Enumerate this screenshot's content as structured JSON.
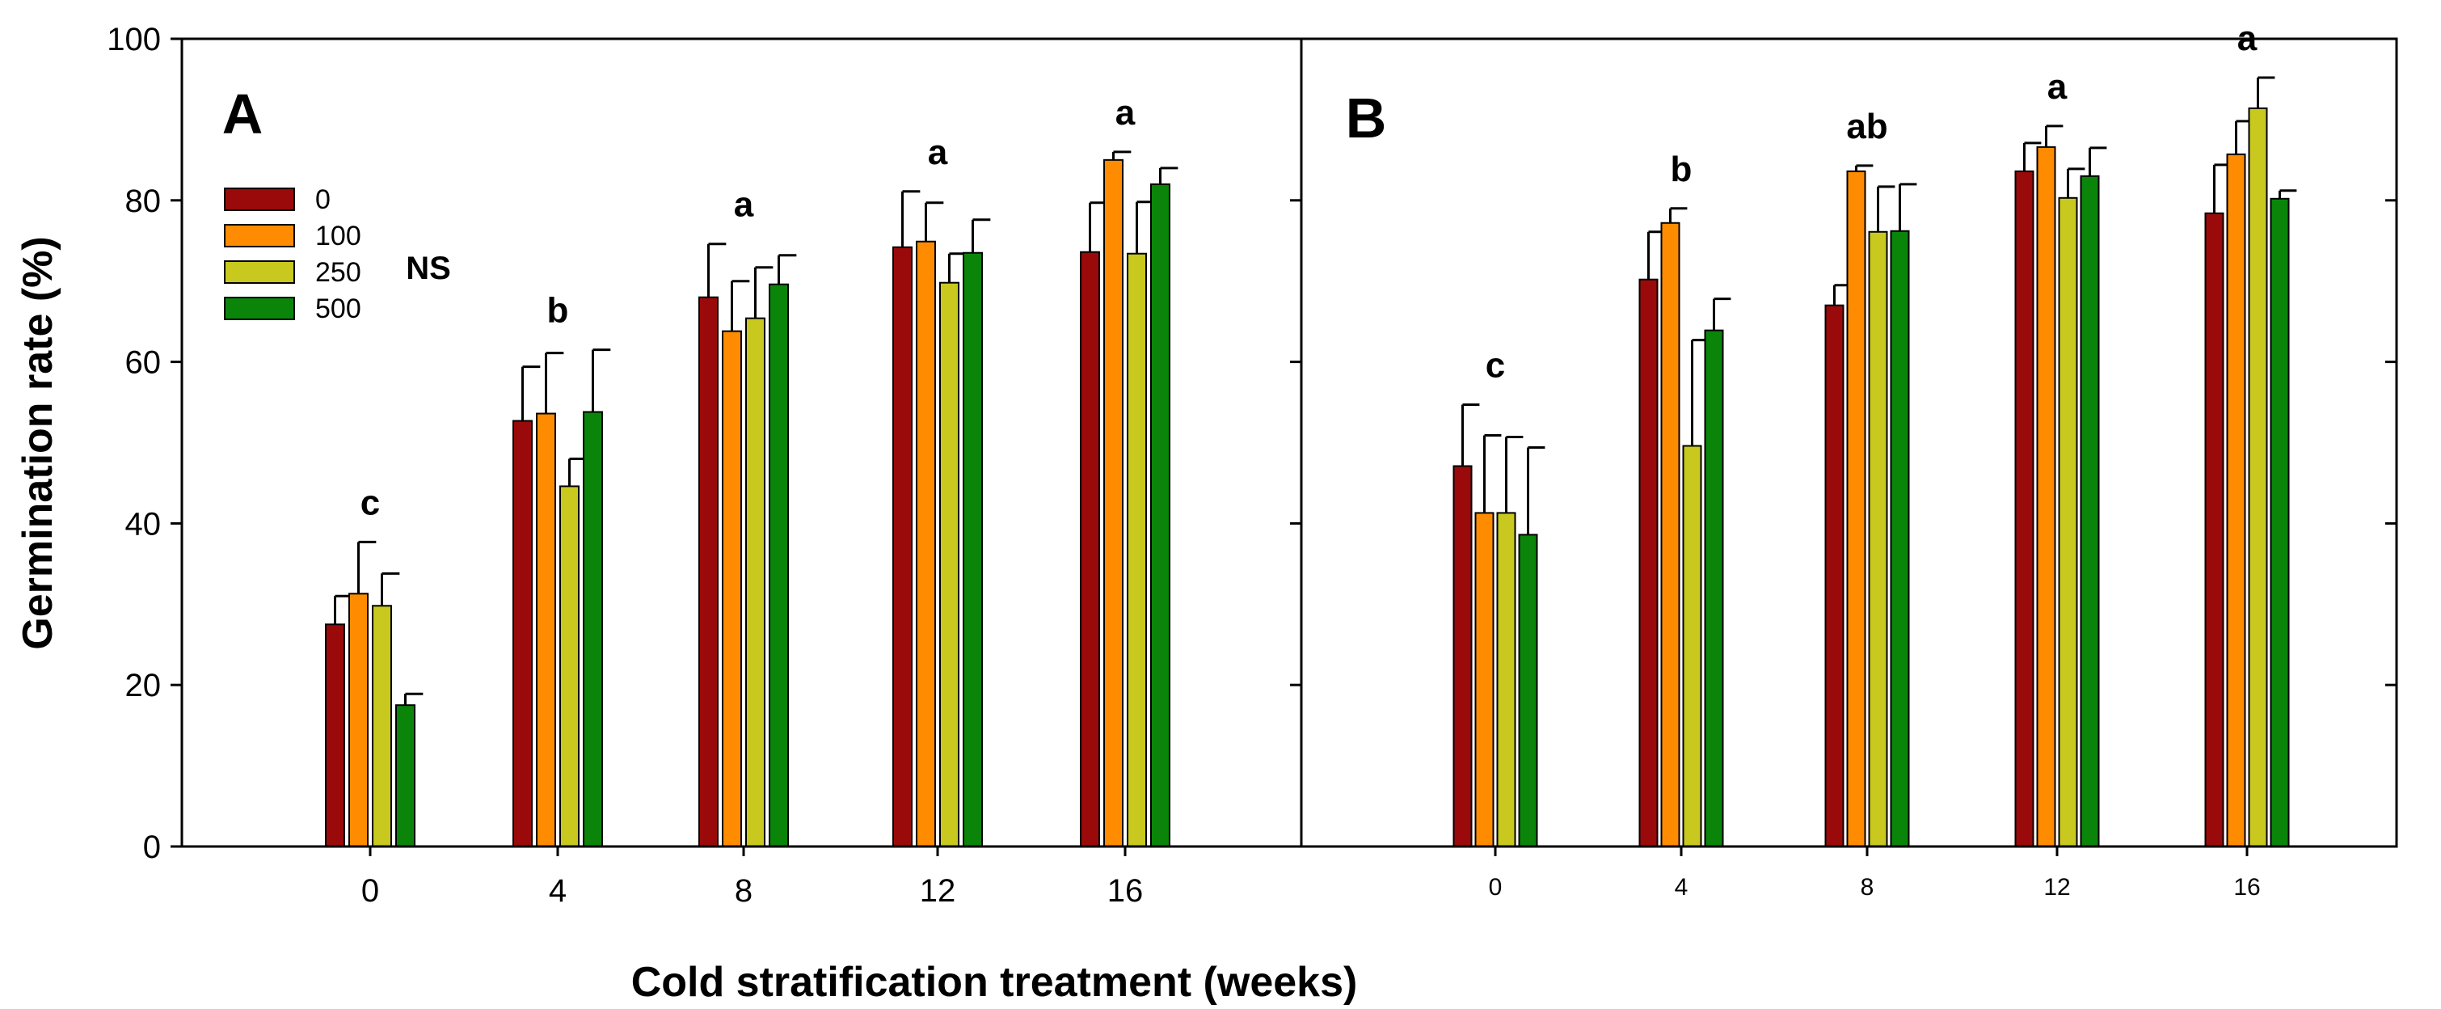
{
  "chart_data": {
    "type": "bar",
    "title": "",
    "xlabel": "Cold stratification treatment (weeks)",
    "ylabel": "Germination rate (%)",
    "ylim": [
      0,
      100
    ],
    "yticks": [
      "0",
      "20",
      "40",
      "60",
      "80",
      "100"
    ],
    "categories": [
      "0",
      "4",
      "8",
      "12",
      "16"
    ],
    "legend": {
      "position": "top-left",
      "entries": [
        "0",
        "100",
        "250",
        "500"
      ]
    },
    "series_colors": [
      "#9b0a0a",
      "#ff8c00",
      "#c8c81e",
      "#0a850a"
    ],
    "panels": [
      {
        "label": "A",
        "note": "NS",
        "letters": [
          "c",
          "b",
          "a",
          "a",
          "a"
        ],
        "series": [
          {
            "name": "0",
            "values": [
              27.5,
              52.7,
              68.0,
              74.2,
              73.6
            ],
            "errors": [
              3.5,
              6.7,
              6.6,
              6.9,
              6.1
            ]
          },
          {
            "name": "100",
            "values": [
              31.3,
              53.6,
              63.8,
              74.9,
              85.0
            ],
            "errors": [
              6.4,
              7.5,
              6.2,
              4.8,
              1.0
            ]
          },
          {
            "name": "250",
            "values": [
              29.8,
              44.6,
              65.4,
              69.8,
              73.4
            ],
            "errors": [
              4.0,
              3.4,
              6.3,
              3.6,
              6.4
            ]
          },
          {
            "name": "500",
            "values": [
              17.5,
              53.8,
              69.6,
              73.5,
              82.0
            ],
            "errors": [
              1.4,
              7.7,
              3.6,
              4.1,
              2.0
            ]
          }
        ]
      },
      {
        "label": "B",
        "note": "",
        "letters": [
          "c",
          "b",
          "ab",
          "a",
          "a"
        ],
        "series": [
          {
            "name": "0",
            "values": [
              47.1,
              70.2,
              67.0,
              83.6,
              78.4
            ],
            "errors": [
              7.6,
              5.9,
              2.5,
              3.5,
              6.0
            ]
          },
          {
            "name": "100",
            "values": [
              41.3,
              77.2,
              83.6,
              86.6,
              85.7
            ],
            "errors": [
              9.6,
              1.8,
              0.7,
              2.6,
              4.1
            ]
          },
          {
            "name": "250",
            "values": [
              41.3,
              49.6,
              76.1,
              80.3,
              91.4
            ],
            "errors": [
              9.4,
              13.1,
              5.6,
              3.6,
              3.8
            ]
          },
          {
            "name": "500",
            "values": [
              38.6,
              63.9,
              76.2,
              83.0,
              80.2
            ],
            "errors": [
              10.8,
              3.9,
              5.8,
              3.5,
              1.0
            ]
          }
        ]
      }
    ]
  }
}
